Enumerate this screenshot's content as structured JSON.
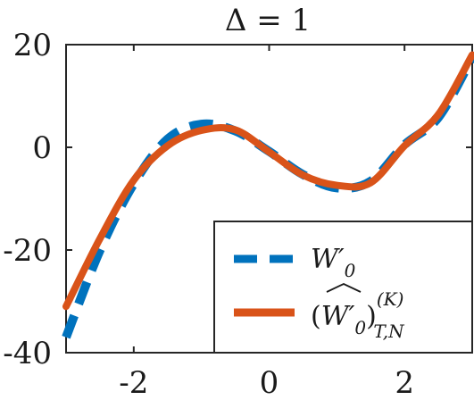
{
  "chart_data": {
    "type": "line",
    "title": "Δ = 1",
    "xlim": [
      -3,
      3
    ],
    "ylim": [
      -40,
      20
    ],
    "xticks": [
      -2,
      0,
      2
    ],
    "xtick_labels": [
      "-2",
      "0",
      "2"
    ],
    "yticks": [
      -40,
      -20,
      0,
      20
    ],
    "ytick_labels": [
      "-40",
      "-20",
      "0",
      "20"
    ],
    "grid": false,
    "legend_position": "bottom-right",
    "series": [
      {
        "name": "W′0",
        "style": "dashed",
        "color": "#0072BD",
        "x": [
          -3,
          -2.5,
          -2,
          -1.5,
          -1,
          -0.5,
          0,
          0.5,
          1,
          1.5,
          2,
          2.5,
          3
        ],
        "y": [
          -37,
          -20.1,
          -7.1,
          1.6,
          4.5,
          3.2,
          -0.8,
          -5.3,
          -7.9,
          -6.6,
          0.5,
          5.8,
          17.5
        ]
      },
      {
        "name": "(Ŵ′0)(K)T,N",
        "style": "solid",
        "color": "#D95319",
        "x": [
          -3,
          -2.5,
          -2,
          -1.5,
          -1,
          -0.5,
          0,
          0.5,
          1,
          1.5,
          2,
          2.5,
          3
        ],
        "y": [
          -31,
          -17.8,
          -6.4,
          0.3,
          3.3,
          3.4,
          -0.9,
          -5.4,
          -7.4,
          -6.9,
          0.3,
          6.4,
          18
        ]
      }
    ],
    "legend": {
      "entry1_main": "W",
      "entry1_prime": "′",
      "entry1_sub": "0",
      "entry2_open": "(",
      "entry2_W": "W",
      "entry2_prime": "′",
      "entry2_sub0": "0",
      "entry2_close": ")",
      "entry2_sup": "(K)",
      "entry2_sub": "T,N"
    }
  }
}
